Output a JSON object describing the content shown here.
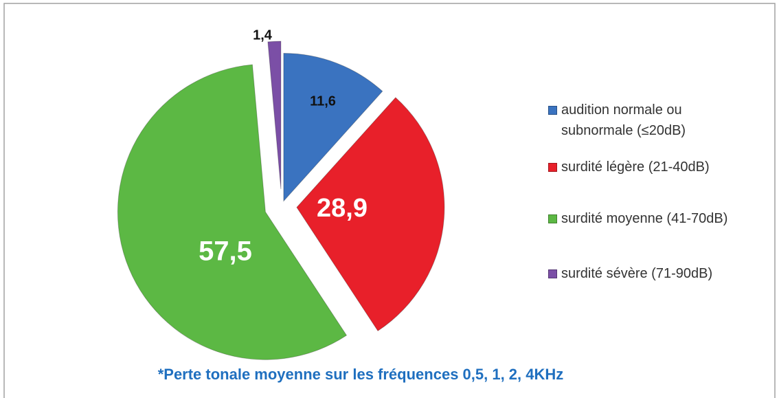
{
  "chart_data": {
    "type": "pie",
    "categories": [
      "audition normale ou subnormale (≤20dB)",
      "surdité légère (21-40dB)",
      "surdité moyenne (41-70dB)",
      "surdité sévère (71-90dB)"
    ],
    "values": [
      11.6,
      28.9,
      57.5,
      1.4
    ],
    "value_labels": [
      "11,6",
      "28,9",
      "57,5",
      "1,4"
    ],
    "colors": [
      "#3a73c0",
      "#e8202a",
      "#5cb844",
      "#7b4fa6"
    ],
    "legend": "right",
    "footnote": "*Perte tonale moyenne sur les fréquences 0,5, 1, 2, 4KHz"
  }
}
